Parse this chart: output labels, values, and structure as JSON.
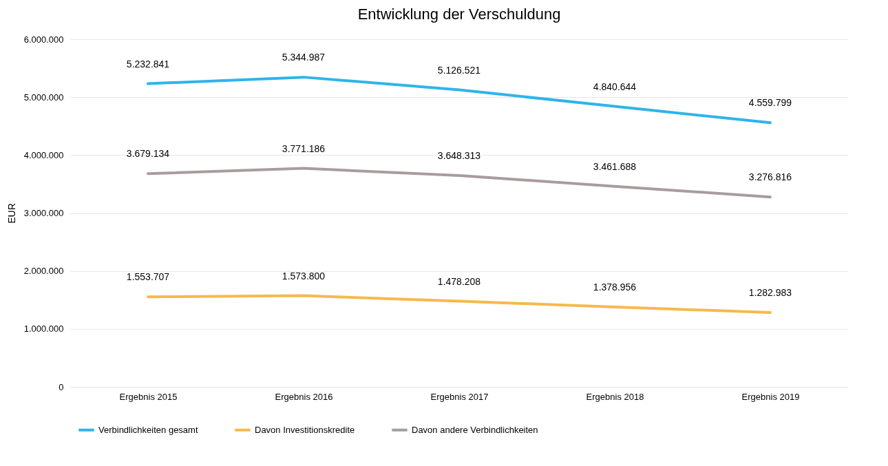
{
  "chart_data": {
    "type": "line",
    "title": "Entwicklung der Verschuldung",
    "ylabel": "EUR",
    "categories": [
      "Ergebnis 2015",
      "Ergebnis 2016",
      "Ergebnis 2017",
      "Ergebnis 2018",
      "Ergebnis 2019"
    ],
    "series": [
      {
        "name": "Verbindlichkeiten gesamt",
        "color": "#2fb4ea",
        "values": [
          5232841,
          5344987,
          5126521,
          4840644,
          4559799
        ],
        "value_labels": [
          "5.232.841",
          "5.344.987",
          "5.126.521",
          "4.840.644",
          "4.559.799"
        ]
      },
      {
        "name": "Davon Investitionskredite",
        "color": "#f6b94c",
        "values": [
          1553707,
          1573800,
          1478208,
          1378956,
          1282983
        ],
        "value_labels": [
          "1.553.707",
          "1.573.800",
          "1.478.208",
          "1.378.956",
          "1.282.983"
        ]
      },
      {
        "name": "Davon andere Verbindlichkeiten",
        "color": "#a89c9e",
        "values": [
          3679134,
          3771186,
          3648313,
          3461688,
          3276816
        ],
        "value_labels": [
          "3.679.134",
          "3.771.186",
          "3.648.313",
          "3.461.688",
          "3.276.816"
        ]
      }
    ],
    "ylim": [
      0,
      6000000
    ],
    "yticks": [
      0,
      {
        "value": 1000000,
        "label": "1.000.000"
      },
      {
        "value": 2000000,
        "label": "2.000.000"
      },
      {
        "value": 3000000,
        "label": "3.000.000"
      },
      {
        "value": 4000000,
        "label": "4.000.000"
      },
      {
        "value": 5000000,
        "label": "5.000.000"
      },
      {
        "value": 6000000,
        "label": "6.000.000"
      }
    ],
    "grid": "y",
    "legend": "bottom",
    "marker": "none",
    "line_style": "solid"
  }
}
